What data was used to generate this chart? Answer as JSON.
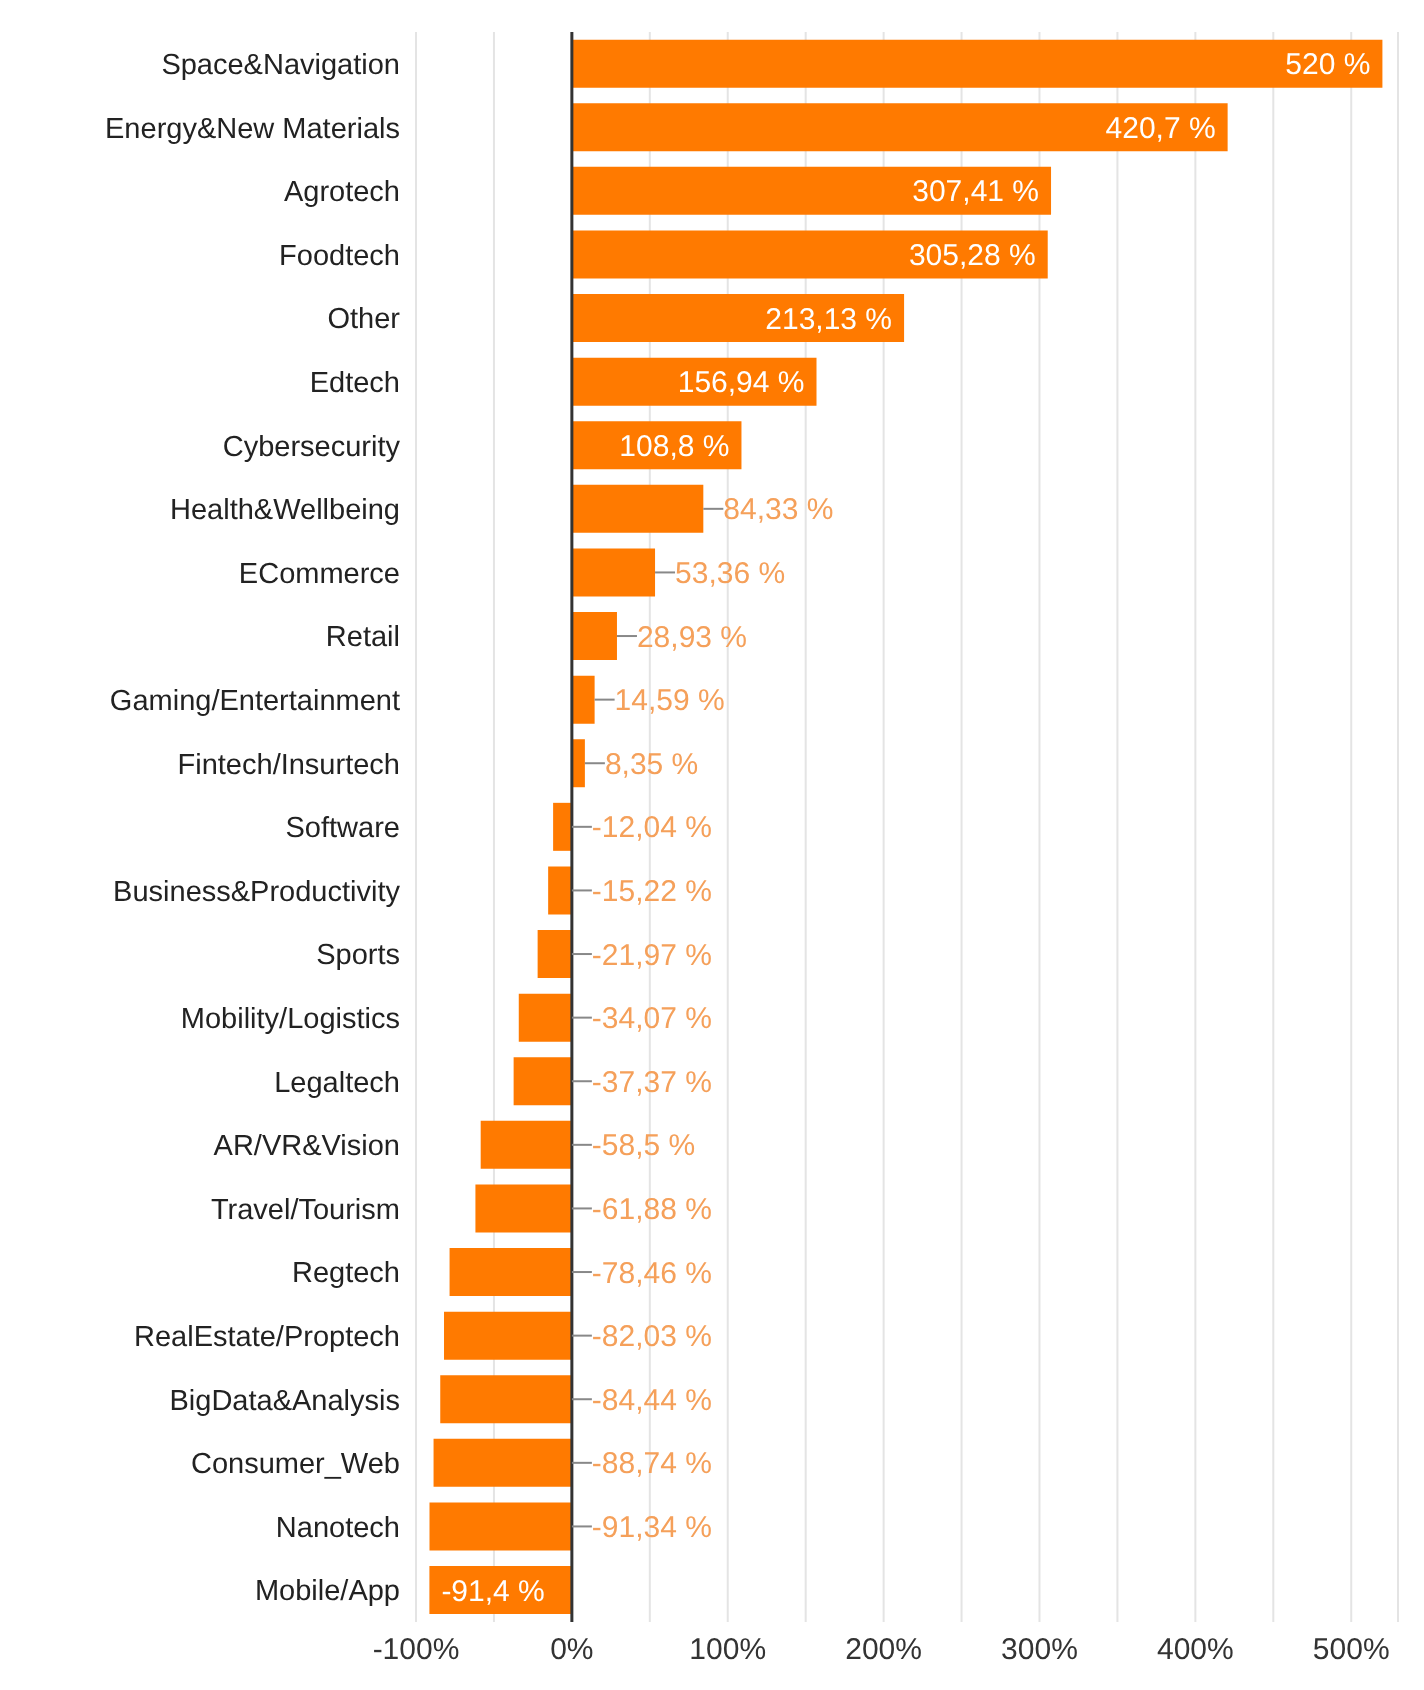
{
  "chart_data": {
    "type": "bar",
    "orientation": "horizontal",
    "categories": [
      "Space&Navigation",
      "Energy&New Materials",
      "Agrotech",
      "Foodtech",
      "Other",
      "Edtech",
      "Cybersecurity",
      "Health&Wellbeing",
      "ECommerce",
      "Retail",
      "Gaming/Entertainment",
      "Fintech/Insurtech",
      "Software",
      "Business&Productivity",
      "Sports",
      "Mobility/Logistics",
      "Legaltech",
      "AR/VR&Vision",
      "Travel/Tourism",
      "Regtech",
      "RealEstate/Proptech",
      "BigData&Analysis",
      "Consumer_Web",
      "Nanotech",
      "Mobile/App"
    ],
    "values": [
      520,
      420.7,
      307.41,
      305.28,
      213.13,
      156.94,
      108.8,
      84.33,
      53.36,
      28.93,
      14.59,
      8.35,
      -12.04,
      -15.22,
      -21.97,
      -34.07,
      -37.37,
      -58.5,
      -61.88,
      -78.46,
      -82.03,
      -84.44,
      -88.74,
      -91.34,
      -91.4
    ],
    "value_labels": [
      "520 %",
      "420,7 %",
      "307,41 %",
      "305,28 %",
      "213,13 %",
      "156,94 %",
      "108,8 %",
      "84,33 %",
      "53,36 %",
      "28,93 %",
      "14,59 %",
      "8,35 %",
      "-12,04 %",
      "-15,22 %",
      "-21,97 %",
      "-34,07 %",
      "-37,37 %",
      "-58,5 %",
      "-61,88 %",
      "-78,46 %",
      "-82,03 %",
      "-84,44 %",
      "-88,74 %",
      "-91,34 %",
      "-91,4 %"
    ],
    "color": "#ff7a00",
    "xlim": [
      -100,
      530
    ],
    "xticks": [
      {
        "value": -100,
        "label": "-100%"
      },
      {
        "value": -50,
        "label": null
      },
      {
        "value": 0,
        "label": "0%"
      },
      {
        "value": 50,
        "label": null
      },
      {
        "value": 100,
        "label": "100%"
      },
      {
        "value": 150,
        "label": null
      },
      {
        "value": 200,
        "label": "200%"
      },
      {
        "value": 250,
        "label": null
      },
      {
        "value": 300,
        "label": "300%"
      },
      {
        "value": 350,
        "label": null
      },
      {
        "value": 400,
        "label": "400%"
      },
      {
        "value": 450,
        "label": null
      },
      {
        "value": 500,
        "label": "500%"
      }
    ],
    "grid": "x"
  }
}
